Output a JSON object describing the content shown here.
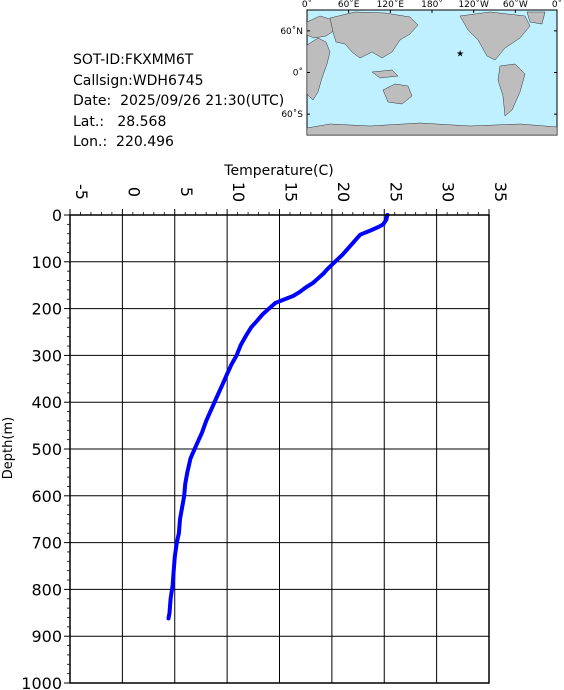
{
  "info": {
    "sot_id": "SOT-ID:FKXMM6T",
    "callsign": "Callsign:WDH6745",
    "date": "Date:  2025/09/26 21:30(UTC)",
    "lat": "Lat.:   28.568",
    "lon": "Lon.:  220.496"
  },
  "map": {
    "lon_labels": [
      "0˚",
      "60˚E",
      "120˚E",
      "180˚",
      "120˚W",
      "60˚W",
      "0˚"
    ],
    "lat_labels": [
      "60˚N",
      "0˚",
      "60˚S"
    ],
    "ocean_color": "#bff0ff",
    "land_color": "#bdbdbd",
    "marker_color": "#ff0000",
    "marker_lon": 220.496,
    "marker_lat": 28.568
  },
  "chart_data": {
    "type": "line",
    "title": "",
    "xlabel": "Temperature(C)",
    "ylabel": "Depth(m)",
    "xlim": [
      -5,
      35
    ],
    "ylim": [
      0,
      1000
    ],
    "x_ticks": [
      "-5",
      "0",
      "5",
      "10",
      "15",
      "20",
      "25",
      "30",
      "35"
    ],
    "y_ticks": [
      "0",
      "100",
      "200",
      "300",
      "400",
      "500",
      "600",
      "700",
      "800",
      "900",
      "1000"
    ],
    "line_color": "#0000ff",
    "grid": true,
    "series": [
      {
        "x": [
          25.3,
          25.2,
          24.9,
          24.5,
          23.8,
          22.7,
          22.2,
          21.6,
          21.0,
          20.3,
          19.6,
          19.2,
          18.7,
          18.2,
          17.5,
          16.9,
          16.3,
          15.5,
          14.6,
          14.0,
          13.4,
          12.9,
          12.3,
          11.8,
          11.3,
          10.9,
          10.4,
          10.0,
          9.5,
          9.0,
          8.5,
          8.0,
          7.6,
          7.1,
          6.5,
          6.2,
          6.0,
          5.9,
          5.7,
          5.5,
          5.4,
          5.2,
          5.0,
          4.9,
          4.8,
          4.6,
          4.5,
          4.4
        ],
        "y": [
          0,
          10,
          20,
          25,
          32,
          42,
          55,
          70,
          85,
          100,
          115,
          125,
          135,
          145,
          155,
          165,
          173,
          180,
          188,
          200,
          212,
          225,
          240,
          258,
          278,
          300,
          320,
          340,
          365,
          390,
          415,
          440,
          465,
          490,
          520,
          550,
          575,
          600,
          625,
          650,
          680,
          700,
          730,
          760,
          790,
          820,
          850,
          862
        ]
      }
    ]
  }
}
